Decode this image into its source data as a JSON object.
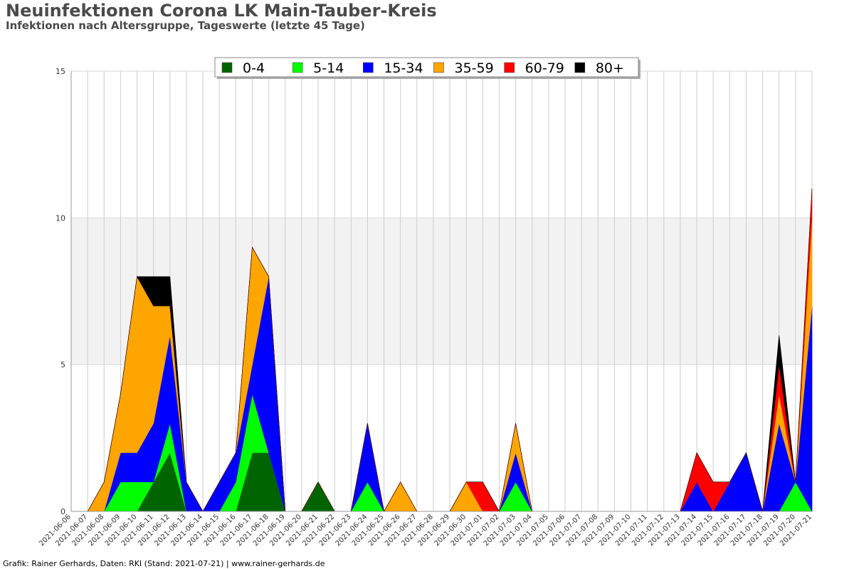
{
  "chart_data": {
    "type": "area",
    "stacked": true,
    "title": "Neuinfektionen Corona LK Main-Tauber-Kreis",
    "subtitle": "Infektionen nach Altersgruppe, Tageswerte (letzte 45 Tage)",
    "ylim": [
      0,
      15
    ],
    "yticks": [
      0,
      5,
      10,
      15
    ],
    "grid": true,
    "legend_position": "top",
    "categories": [
      "2021-06-06",
      "2021-06-07",
      "2021-06-08",
      "2021-06-09",
      "2021-06-10",
      "2021-06-11",
      "2021-06-12",
      "2021-06-13",
      "2021-06-14",
      "2021-06-15",
      "2021-06-16",
      "2021-06-17",
      "2021-06-18",
      "2021-06-19",
      "2021-06-20",
      "2021-06-21",
      "2021-06-22",
      "2021-06-23",
      "2021-06-24",
      "2021-06-25",
      "2021-06-26",
      "2021-06-27",
      "2021-06-28",
      "2021-06-29",
      "2021-06-30",
      "2021-07-01",
      "2021-07-02",
      "2021-07-03",
      "2021-07-04",
      "2021-07-05",
      "2021-07-06",
      "2021-07-07",
      "2021-07-08",
      "2021-07-09",
      "2021-07-10",
      "2021-07-11",
      "2021-07-12",
      "2021-07-13",
      "2021-07-14",
      "2021-07-15",
      "2021-07-16",
      "2021-07-17",
      "2021-07-18",
      "2021-07-19",
      "2021-07-20",
      "2021-07-21"
    ],
    "series": [
      {
        "name": "0-4",
        "color": "#006400",
        "values": [
          0,
          0,
          0,
          0,
          0,
          1,
          2,
          0,
          0,
          0,
          0,
          2,
          2,
          0,
          0,
          1,
          0,
          0,
          0,
          0,
          0,
          0,
          0,
          0,
          0,
          0,
          0,
          0,
          0,
          0,
          0,
          0,
          0,
          0,
          0,
          0,
          0,
          0,
          0,
          0,
          0,
          0,
          0,
          0,
          0,
          0
        ]
      },
      {
        "name": "5-14",
        "color": "#00ff00",
        "values": [
          0,
          0,
          0,
          1,
          1,
          0,
          1,
          0,
          0,
          0,
          1,
          2,
          0,
          0,
          0,
          0,
          0,
          0,
          1,
          0,
          0,
          0,
          0,
          0,
          0,
          0,
          0,
          1,
          0,
          0,
          0,
          0,
          0,
          0,
          0,
          0,
          0,
          0,
          0,
          0,
          0,
          0,
          0,
          0,
          1,
          0
        ]
      },
      {
        "name": "15-34",
        "color": "#0000ff",
        "values": [
          0,
          0,
          0,
          1,
          1,
          2,
          3,
          1,
          0,
          1,
          1,
          1,
          6,
          0,
          0,
          0,
          0,
          0,
          2,
          0,
          0,
          0,
          0,
          0,
          0,
          0,
          0,
          1,
          0,
          0,
          0,
          0,
          0,
          0,
          0,
          0,
          0,
          0,
          1,
          0,
          1,
          2,
          0,
          3,
          0,
          7
        ]
      },
      {
        "name": "35-59",
        "color": "#ffa500",
        "values": [
          0,
          0,
          1,
          2,
          6,
          4,
          1,
          0,
          0,
          0,
          0,
          4,
          0,
          0,
          0,
          0,
          0,
          0,
          0,
          0,
          1,
          0,
          0,
          0,
          1,
          0,
          0,
          1,
          0,
          0,
          0,
          0,
          0,
          0,
          0,
          0,
          0,
          0,
          0,
          0,
          0,
          0,
          0,
          1,
          0,
          3
        ]
      },
      {
        "name": "60-79",
        "color": "#ff0000",
        "values": [
          0,
          0,
          0,
          0,
          0,
          0,
          0,
          0,
          0,
          0,
          0,
          0,
          0,
          0,
          0,
          0,
          0,
          0,
          0,
          0,
          0,
          0,
          0,
          0,
          0,
          1,
          0,
          0,
          0,
          0,
          0,
          0,
          0,
          0,
          0,
          0,
          0,
          0,
          1,
          1,
          0,
          0,
          0,
          1,
          0,
          1
        ]
      },
      {
        "name": "80+",
        "color": "#000000",
        "values": [
          0,
          0,
          0,
          0,
          0,
          1,
          1,
          0,
          0,
          0,
          0,
          0,
          0,
          0,
          0,
          0,
          0,
          0,
          0,
          0,
          0,
          0,
          0,
          0,
          0,
          0,
          0,
          0,
          0,
          0,
          0,
          0,
          0,
          0,
          0,
          0,
          0,
          0,
          0,
          0,
          0,
          0,
          0,
          1,
          0,
          0
        ]
      }
    ]
  },
  "footer": "Grafik: Rainer Gerhards, Daten: RKI (Stand: 2021-07-21) | www.rainer-gerhards.de"
}
